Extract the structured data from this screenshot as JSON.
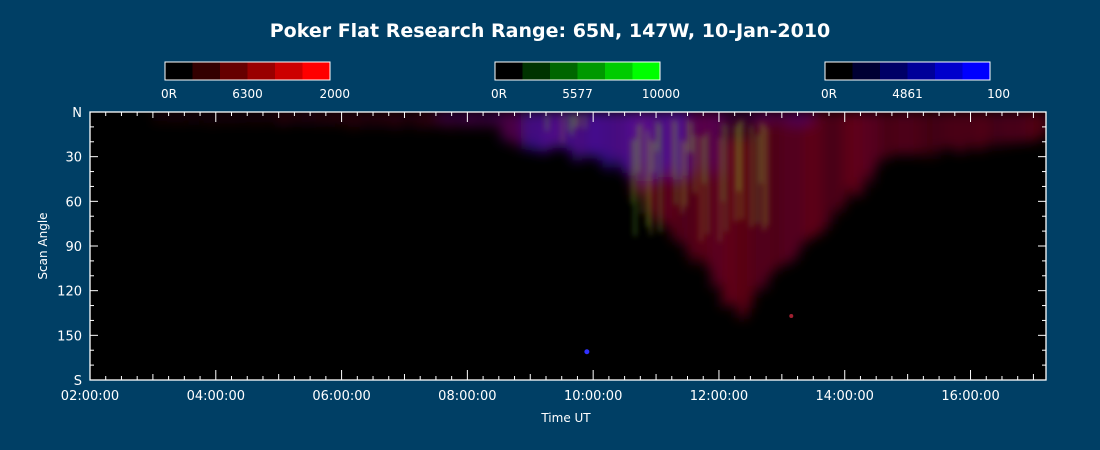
{
  "chart_data": {
    "type": "heatmap",
    "title": "Poker Flat Research Range: 65N, 147W, 10-Jan-2010",
    "xlabel": "Time UT",
    "ylabel": "Scan Angle",
    "x_ticks": [
      "02:00:00",
      "04:00:00",
      "06:00:00",
      "08:00:00",
      "10:00:00",
      "12:00:00",
      "14:00:00",
      "16:00:00"
    ],
    "x_range_hours": [
      2.0,
      17.2
    ],
    "y_ticks": [
      "N",
      "30",
      "60",
      "90",
      "120",
      "150",
      "S"
    ],
    "y_range": [
      0,
      180
    ],
    "legend": [
      {
        "name": "6300",
        "min_label": "0R",
        "max_label": "2000",
        "color": "#ff0000"
      },
      {
        "name": "5577",
        "min_label": "0R",
        "max_label": "10000",
        "color": "#00ff00"
      },
      {
        "name": "4861",
        "min_label": "0R",
        "max_label": "100",
        "color": "#0000ff"
      }
    ],
    "grid": false,
    "features": [
      {
        "description_hours": [
          8.5,
          10.5
        ],
        "scan_angle": [
          0,
          40
        ],
        "dominant": "4861"
      },
      {
        "description_hours": [
          10.5,
          14.5
        ],
        "scan_angle": [
          0,
          130
        ],
        "dominant": "6300"
      },
      {
        "description_hours": [
          14.5,
          17.2
        ],
        "scan_angle": [
          0,
          35
        ],
        "dominant": "6300"
      }
    ]
  }
}
